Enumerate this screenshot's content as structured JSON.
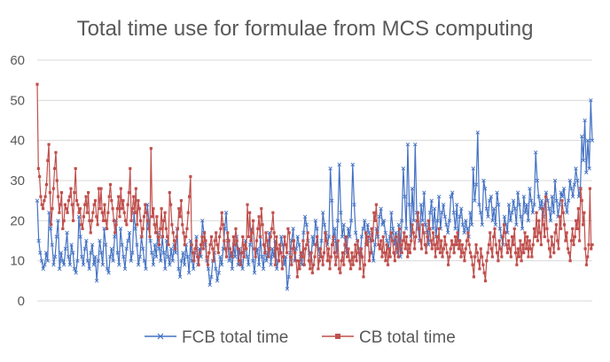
{
  "chart_data": {
    "type": "line",
    "title": "Total time use for formulae from MCS computing",
    "xlabel": "",
    "ylabel": "",
    "ylim": [
      0,
      60
    ],
    "yticks": [
      "0",
      "10",
      "20",
      "30",
      "40",
      "50",
      "60"
    ],
    "grid": "horizontal",
    "legend_position": "bottom",
    "series": [
      {
        "name": "FCB total time",
        "color": "#4472C4",
        "marker": "x",
        "values": [
          25,
          15,
          12,
          10,
          8,
          9,
          12,
          10,
          22,
          18,
          14,
          9,
          11,
          16,
          20,
          8,
          12,
          10,
          9,
          13,
          17,
          11,
          9,
          14,
          12,
          8,
          7,
          10,
          21,
          16,
          11,
          9,
          13,
          15,
          10,
          8,
          12,
          14,
          9,
          11,
          5,
          10,
          15,
          12,
          9,
          18,
          14,
          8,
          7,
          11,
          13,
          10,
          16,
          20,
          12,
          9,
          18,
          14,
          11,
          8,
          13,
          15,
          17,
          10,
          12,
          22,
          18,
          14,
          9,
          11,
          16,
          13,
          10,
          8,
          24,
          20,
          15,
          12,
          9,
          14,
          11,
          17,
          13,
          10,
          16,
          12,
          8,
          15,
          11,
          9,
          13,
          10,
          14,
          12,
          18,
          8,
          6,
          10,
          12,
          9,
          14,
          11,
          7,
          15,
          10,
          8,
          12,
          16,
          9,
          13,
          11,
          20,
          17,
          14,
          10,
          8,
          4,
          6,
          10,
          12,
          8,
          5,
          7,
          11,
          9,
          13,
          18,
          22,
          15,
          10,
          12,
          8,
          14,
          11,
          16,
          9,
          13,
          10,
          8,
          12,
          15,
          11,
          9,
          14,
          18,
          10,
          7,
          12,
          13,
          9,
          16,
          11,
          8,
          14,
          10,
          12,
          17,
          9,
          13,
          11,
          15,
          8,
          10,
          12,
          16,
          14,
          9,
          11,
          3,
          6,
          12,
          15,
          18,
          10,
          13,
          16,
          14,
          11,
          9,
          17,
          21,
          19,
          15,
          12,
          10,
          16,
          14,
          20,
          18,
          13,
          11,
          15,
          22,
          19,
          17,
          14,
          16,
          33,
          25,
          15,
          18,
          12,
          20,
          34,
          22,
          16,
          19,
          14,
          12,
          18,
          16,
          20,
          34,
          24,
          17,
          15,
          13,
          11,
          16,
          18,
          20,
          14,
          19,
          17,
          15,
          12,
          10,
          14,
          18,
          16,
          21,
          23,
          19,
          20,
          17,
          15,
          13,
          16,
          22,
          18,
          14,
          17,
          12,
          19,
          11,
          20,
          33,
          26,
          18,
          39,
          24,
          16,
          28,
          20,
          39,
          22,
          18,
          15,
          24,
          20,
          27,
          19,
          17,
          14,
          22,
          25,
          18,
          23,
          16,
          20,
          26,
          18,
          22,
          24,
          21,
          19,
          17,
          20,
          26,
          27,
          22,
          18,
          24,
          15,
          21,
          23,
          19,
          17,
          20,
          18,
          16,
          22,
          19,
          33,
          25,
          29,
          42,
          24,
          22,
          19,
          30,
          28,
          23,
          21,
          25,
          26,
          20,
          23,
          19,
          27,
          24,
          18,
          16,
          14,
          21,
          19,
          17,
          24,
          20,
          22,
          25,
          23,
          19,
          27,
          24,
          21,
          18,
          26,
          22,
          24,
          20,
          28,
          25,
          22,
          24,
          37,
          30,
          26,
          23,
          25,
          21,
          24,
          27,
          25,
          23,
          20,
          26,
          22,
          30,
          25,
          21,
          24,
          27,
          26,
          28,
          24,
          22,
          25,
          30,
          28,
          26,
          29,
          33,
          30,
          26,
          28,
          41,
          35,
          45,
          32,
          40,
          33,
          50,
          40
        ]
      },
      {
        "name": "CB total time",
        "color": "#C0504D",
        "marker": "square",
        "values": [
          54,
          33,
          31,
          26,
          24,
          23,
          25,
          26,
          29,
          35,
          39,
          27,
          19,
          23,
          28,
          33,
          37,
          30,
          26,
          22,
          24,
          27,
          18,
          20,
          24,
          23,
          22,
          25,
          26,
          28,
          24,
          20,
          27,
          33,
          25,
          24,
          22,
          23,
          19,
          18,
          21,
          24,
          26,
          22,
          27,
          20,
          17,
          20,
          22,
          24,
          25,
          21,
          19,
          28,
          23,
          28,
          22,
          20,
          24,
          20,
          18,
          22,
          26,
          29,
          25,
          23,
          20,
          17,
          19,
          23,
          26,
          21,
          28,
          23,
          25,
          22,
          20,
          19,
          24,
          27,
          33,
          20,
          23,
          26,
          22,
          28,
          19,
          25,
          23,
          20,
          16,
          18,
          21,
          24,
          22,
          20,
          18,
          16,
          38,
          21,
          23,
          19,
          17,
          21,
          16,
          14,
          18,
          23,
          16,
          20,
          22,
          18,
          16,
          14,
          27,
          24,
          19,
          17,
          15,
          13,
          16,
          18,
          23,
          21,
          25,
          19,
          17,
          14,
          16,
          18,
          22,
          26,
          31,
          14,
          12,
          10,
          13,
          15,
          11,
          9,
          12,
          14,
          16,
          13,
          17,
          15,
          11,
          9,
          12,
          14,
          16,
          13,
          10,
          15,
          17,
          14,
          12,
          16,
          18,
          22,
          19,
          15,
          13,
          11,
          17,
          15,
          13,
          12,
          11,
          16,
          14,
          18,
          15,
          13,
          10,
          9,
          12,
          16,
          11,
          14,
          13,
          24,
          16,
          22,
          15,
          17,
          20,
          13,
          11,
          15,
          18,
          21,
          16,
          23,
          19,
          14,
          12,
          17,
          15,
          11,
          13,
          16,
          18,
          22,
          17,
          9,
          16,
          13,
          10,
          14,
          12,
          8,
          11,
          16,
          14,
          12,
          18,
          17,
          11,
          9,
          13,
          15,
          12,
          10,
          6,
          10,
          8,
          12,
          11,
          15,
          9,
          13,
          14,
          17,
          10,
          8,
          12,
          7,
          9,
          11,
          14,
          16,
          8,
          10,
          13,
          11,
          9,
          12,
          17,
          15,
          10,
          13,
          8,
          11,
          14,
          16,
          12,
          9,
          11,
          15,
          8,
          7,
          10,
          12,
          9,
          14,
          16,
          11,
          13,
          10,
          8,
          12,
          9,
          11,
          14,
          10,
          15,
          12,
          8,
          13,
          11,
          6,
          9,
          17,
          14,
          16,
          10,
          12,
          18,
          15,
          22,
          20,
          24,
          17,
          14,
          13,
          15,
          11,
          16,
          12,
          10,
          14,
          9,
          13,
          11,
          17,
          15,
          12,
          10,
          16,
          13,
          11,
          18,
          14,
          12,
          15,
          17,
          13,
          16,
          11,
          14,
          12,
          15,
          19,
          17,
          13,
          16,
          20,
          22,
          18,
          15,
          13,
          19,
          17,
          14,
          12,
          16,
          20,
          18,
          15,
          13,
          17,
          14,
          11,
          16,
          13,
          18,
          12,
          15,
          11,
          13,
          16,
          14,
          12,
          9,
          11,
          13,
          15,
          14,
          12,
          16,
          14,
          17,
          13,
          15,
          11,
          14,
          12,
          10,
          13,
          15,
          17,
          14,
          12,
          11,
          9,
          6,
          11,
          14,
          12,
          10,
          8,
          13,
          11,
          9,
          7,
          5,
          10,
          12,
          14,
          17,
          13,
          11,
          16,
          18,
          14,
          12,
          10,
          15,
          13,
          11,
          16,
          19,
          17,
          14,
          12,
          15,
          13,
          11,
          16,
          14,
          18,
          12,
          9,
          13,
          11,
          15,
          10,
          14,
          12,
          17,
          13,
          16,
          11,
          15,
          13,
          11,
          14,
          18,
          16,
          22,
          15,
          20,
          17,
          14,
          23,
          19,
          16,
          26,
          18,
          15,
          13,
          11,
          16,
          14,
          12,
          17,
          19,
          15,
          13,
          21,
          18,
          25,
          22,
          19,
          15,
          17,
          13,
          12,
          10,
          15,
          18,
          14,
          16,
          20,
          18,
          23,
          15,
          28,
          25,
          19,
          22,
          13,
          9,
          11,
          14,
          28,
          13,
          14
        ]
      }
    ]
  }
}
